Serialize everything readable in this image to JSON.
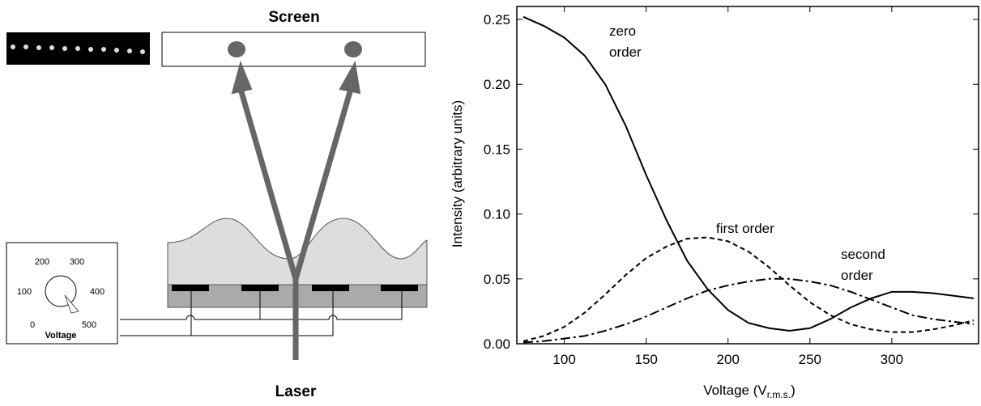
{
  "diagram": {
    "screen_label": "Screen",
    "laser_label": "Laser",
    "dial": {
      "labels": [
        "0",
        "100",
        "200",
        "300",
        "400",
        "500"
      ],
      "title": "Voltage"
    }
  },
  "chart_data": {
    "type": "line",
    "x_label": "Voltage (V",
    "x_label_sub": "r.m.s.",
    "x_label_end": ")",
    "y_label": "Intensity (arbitrary units)",
    "x": [
      75,
      87.5,
      100,
      112.5,
      125,
      137.5,
      150,
      162.5,
      175,
      187.5,
      200,
      212.5,
      225,
      237.5,
      250,
      262.5,
      275,
      287.5,
      300,
      312.5,
      325,
      337.5,
      350
    ],
    "series": [
      {
        "name": "zero order",
        "color": "#000000",
        "style": "solid",
        "label_lines": [
          "zero",
          "order"
        ],
        "values": [
          0.252,
          0.245,
          0.236,
          0.222,
          0.2,
          0.168,
          0.13,
          0.095,
          0.064,
          0.042,
          0.026,
          0.016,
          0.012,
          0.01,
          0.012,
          0.019,
          0.028,
          0.035,
          0.04,
          0.04,
          0.039,
          0.037,
          0.035
        ]
      },
      {
        "name": "first order",
        "color": "#000000",
        "style": "dashed",
        "label_lines": [
          "first order"
        ],
        "values": [
          0.002,
          0.006,
          0.013,
          0.024,
          0.038,
          0.053,
          0.066,
          0.075,
          0.081,
          0.082,
          0.079,
          0.071,
          0.059,
          0.045,
          0.032,
          0.022,
          0.015,
          0.011,
          0.009,
          0.009,
          0.011,
          0.014,
          0.018
        ]
      },
      {
        "name": "second order",
        "color": "#000000",
        "style": "dashdot",
        "label_lines": [
          "second",
          "order"
        ],
        "values": [
          0.001,
          0.002,
          0.004,
          0.006,
          0.01,
          0.015,
          0.021,
          0.028,
          0.035,
          0.041,
          0.045,
          0.048,
          0.05,
          0.05,
          0.048,
          0.045,
          0.04,
          0.034,
          0.028,
          0.022,
          0.019,
          0.017,
          0.015
        ]
      }
    ],
    "xlim": [
      71,
      353
    ],
    "xticks": [
      100,
      150,
      200,
      250,
      300
    ],
    "ylim": [
      0,
      0.26
    ],
    "yticks": [
      {
        "value": 0,
        "label": "0.00"
      },
      {
        "value": 0.05,
        "label": "0.05"
      },
      {
        "value": 0.1,
        "label": "0.10"
      },
      {
        "value": 0.15,
        "label": "0.15"
      },
      {
        "value": 0.2,
        "label": "0.20"
      },
      {
        "value": 0.25,
        "label": "0.25"
      }
    ]
  }
}
